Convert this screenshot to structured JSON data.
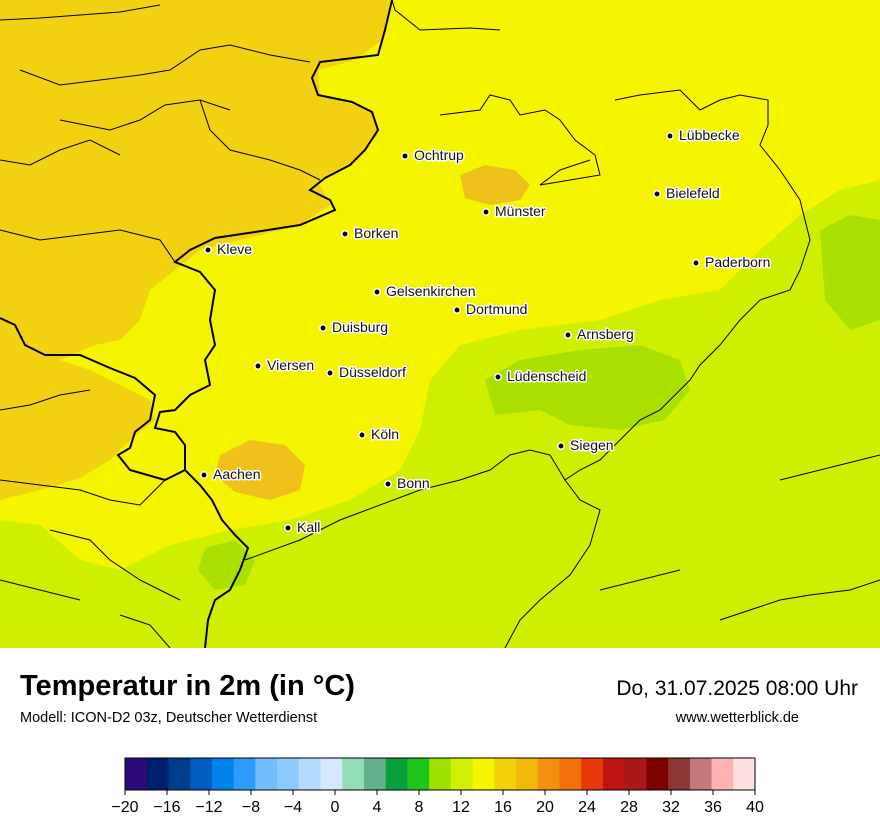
{
  "title": "Temperatur in 2m (in °C)",
  "subtitle": "Modell: ICON-D2 03z, Deutscher Wetterdienst",
  "datetime": "Do, 31.07.2025 08:00 Uhr",
  "website": "www.wetterblick.de",
  "colors": {
    "temp_10_12": "#cfef00",
    "temp_12_14": "#a9e000",
    "temp_14_16": "#e8ef00",
    "temp_16_18": "#f5f500",
    "temp_18_20": "#f2d210",
    "temp_20_22": "#efc11a",
    "border": "#000000"
  },
  "cities": [
    {
      "name": "Lübbecke"
    },
    {
      "name": "Ochtrup"
    },
    {
      "name": "Bielefeld"
    },
    {
      "name": "Münster"
    },
    {
      "name": "Borken"
    },
    {
      "name": "Kleve"
    },
    {
      "name": "Paderborn"
    },
    {
      "name": "Gelsenkirchen"
    },
    {
      "name": "Dortmund"
    },
    {
      "name": "Duisburg"
    },
    {
      "name": "Arnsberg"
    },
    {
      "name": "Viersen"
    },
    {
      "name": "Düsseldorf"
    },
    {
      "name": "Lüdenscheid"
    },
    {
      "name": "Köln"
    },
    {
      "name": "Siegen"
    },
    {
      "name": "Aachen"
    },
    {
      "name": "Bonn"
    },
    {
      "name": "Kall"
    }
  ],
  "legend": {
    "ticks": [
      "−20",
      "−16",
      "−12",
      "−8",
      "−4",
      "0",
      "4",
      "8",
      "12",
      "16",
      "20",
      "24",
      "28",
      "32",
      "36",
      "40"
    ],
    "bins": [
      "#2e0a7a",
      "#001e6e",
      "#003c8c",
      "#005cbe",
      "#0082ee",
      "#2c9cff",
      "#72bcff",
      "#8ecaff",
      "#b4daff",
      "#d4e8ff",
      "#92dcb6",
      "#64b08e",
      "#08a03a",
      "#1ec41c",
      "#9ee000",
      "#cff000",
      "#f6f600",
      "#f2d20a",
      "#f2b80a",
      "#f29010",
      "#f2700a",
      "#e6380a",
      "#be1414",
      "#a81818",
      "#7c0000",
      "#8c3636",
      "#c47878",
      "#ffb2b2",
      "#ffe0e0"
    ]
  }
}
